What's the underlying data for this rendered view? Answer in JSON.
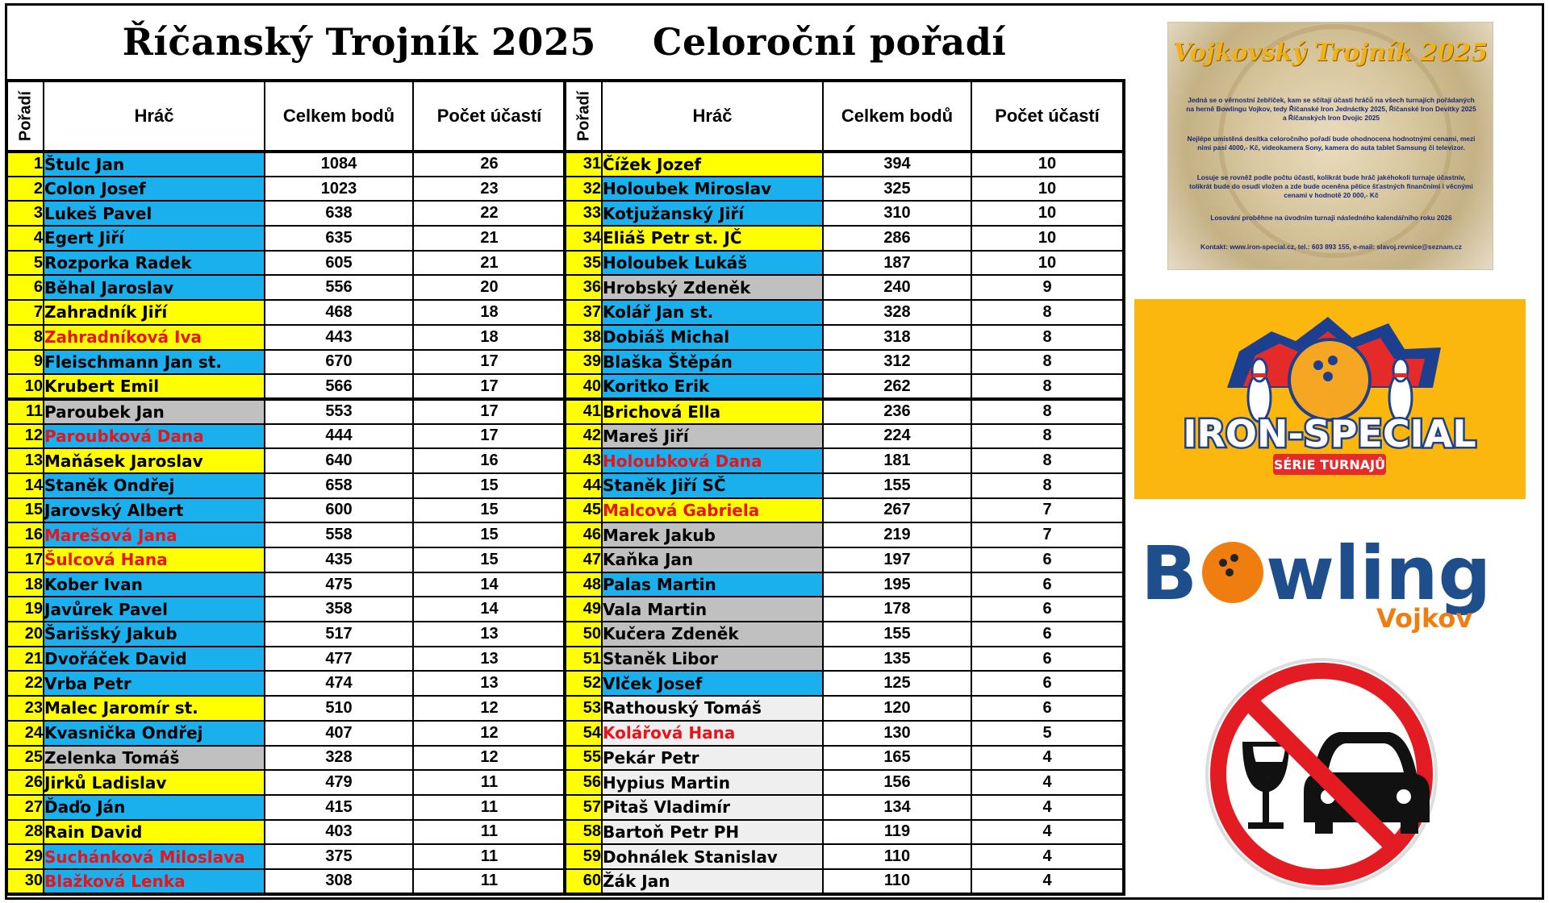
{
  "title": {
    "part1": "Říčanský Trojník 2025",
    "part2": "Celoroční pořadí"
  },
  "columns": {
    "rank": "Pořadí",
    "player": "Hráč",
    "points": "Celkem bodů",
    "count": "Počet účastí"
  },
  "colors": {
    "blue": "#1ab0ee",
    "yellow": "#ffff00",
    "gray": "#c0c0c0",
    "light": "#efefef",
    "red_text": "#e8141c",
    "orange_panel": "#fcb70f"
  },
  "left_rows": [
    {
      "rank": "1",
      "name": "Štulc Jan",
      "points": "1084",
      "count": "26",
      "bg": "blue",
      "red": false
    },
    {
      "rank": "2",
      "name": "Colon Josef",
      "points": "1023",
      "count": "23",
      "bg": "blue",
      "red": false
    },
    {
      "rank": "3",
      "name": "Lukeš Pavel",
      "points": "638",
      "count": "22",
      "bg": "blue",
      "red": false
    },
    {
      "rank": "4",
      "name": "Egert Jiří",
      "points": "635",
      "count": "21",
      "bg": "blue",
      "red": false
    },
    {
      "rank": "5",
      "name": "Rozporka Radek",
      "points": "605",
      "count": "21",
      "bg": "blue",
      "red": false
    },
    {
      "rank": "6",
      "name": "Běhal Jaroslav",
      "points": "556",
      "count": "20",
      "bg": "blue",
      "red": false
    },
    {
      "rank": "7",
      "name": "Zahradník Jiří",
      "points": "468",
      "count": "18",
      "bg": "yellow",
      "red": false
    },
    {
      "rank": "8",
      "name": "Zahradníková Iva",
      "points": "443",
      "count": "18",
      "bg": "yellow",
      "red": true
    },
    {
      "rank": "9",
      "name": "Fleischmann Jan st.",
      "points": "670",
      "count": "17",
      "bg": "blue",
      "red": false
    },
    {
      "rank": "10",
      "name": "Krubert Emil",
      "points": "566",
      "count": "17",
      "bg": "yellow",
      "red": false
    },
    {
      "rank": "11",
      "name": "Paroubek Jan",
      "points": "553",
      "count": "17",
      "bg": "gray",
      "red": false
    },
    {
      "rank": "12",
      "name": "Paroubková Dana",
      "points": "444",
      "count": "17",
      "bg": "blue",
      "red": true
    },
    {
      "rank": "13",
      "name": "Maňásek Jaroslav",
      "points": "640",
      "count": "16",
      "bg": "yellow",
      "red": false
    },
    {
      "rank": "14",
      "name": "Staněk Ondřej",
      "points": "658",
      "count": "15",
      "bg": "blue",
      "red": false
    },
    {
      "rank": "15",
      "name": "Jarovský Albert",
      "points": "600",
      "count": "15",
      "bg": "blue",
      "red": false
    },
    {
      "rank": "16",
      "name": "Marešová Jana",
      "points": "558",
      "count": "15",
      "bg": "blue",
      "red": true
    },
    {
      "rank": "17",
      "name": "Šulcová Hana",
      "points": "435",
      "count": "15",
      "bg": "yellow",
      "red": true
    },
    {
      "rank": "18",
      "name": "Kober Ivan",
      "points": "475",
      "count": "14",
      "bg": "blue",
      "red": false
    },
    {
      "rank": "19",
      "name": "Javůrek Pavel",
      "points": "358",
      "count": "14",
      "bg": "blue",
      "red": false
    },
    {
      "rank": "20",
      "name": "Šarišský Jakub",
      "points": "517",
      "count": "13",
      "bg": "blue",
      "red": false
    },
    {
      "rank": "21",
      "name": "Dvořáček David",
      "points": "477",
      "count": "13",
      "bg": "blue",
      "red": false
    },
    {
      "rank": "22",
      "name": "Vrba Petr",
      "points": "474",
      "count": "13",
      "bg": "blue",
      "red": false
    },
    {
      "rank": "23",
      "name": "Malec Jaromír st.",
      "points": "510",
      "count": "12",
      "bg": "yellow",
      "red": false
    },
    {
      "rank": "24",
      "name": "Kvasnička Ondřej",
      "points": "407",
      "count": "12",
      "bg": "blue",
      "red": false
    },
    {
      "rank": "25",
      "name": "Zelenka Tomáš",
      "points": "328",
      "count": "12",
      "bg": "gray",
      "red": false
    },
    {
      "rank": "26",
      "name": "Jirků Ladislav",
      "points": "479",
      "count": "11",
      "bg": "yellow",
      "red": false
    },
    {
      "rank": "27",
      "name": "Ďaďo Ján",
      "points": "415",
      "count": "11",
      "bg": "blue",
      "red": false
    },
    {
      "rank": "28",
      "name": "Rain David",
      "points": "403",
      "count": "11",
      "bg": "yellow",
      "red": false
    },
    {
      "rank": "29",
      "name": "Suchánková Miloslava",
      "points": "375",
      "count": "11",
      "bg": "blue",
      "red": true
    },
    {
      "rank": "30",
      "name": "Blažková Lenka",
      "points": "308",
      "count": "11",
      "bg": "blue",
      "red": true
    }
  ],
  "right_rows": [
    {
      "rank": "31",
      "name": "Čížek Jozef",
      "points": "394",
      "count": "10",
      "bg": "yellow",
      "red": false
    },
    {
      "rank": "32",
      "name": "Holoubek Miroslav",
      "points": "325",
      "count": "10",
      "bg": "blue",
      "red": false
    },
    {
      "rank": "33",
      "name": "Kotjužanský Jiří",
      "points": "310",
      "count": "10",
      "bg": "blue",
      "red": false
    },
    {
      "rank": "34",
      "name": "Eliáš Petr st. JČ",
      "points": "286",
      "count": "10",
      "bg": "yellow",
      "red": false
    },
    {
      "rank": "35",
      "name": "Holoubek Lukáš",
      "points": "187",
      "count": "10",
      "bg": "blue",
      "red": false
    },
    {
      "rank": "36",
      "name": "Hrobský Zdeněk",
      "points": "240",
      "count": "9",
      "bg": "gray",
      "red": false
    },
    {
      "rank": "37",
      "name": "Kolář Jan st.",
      "points": "328",
      "count": "8",
      "bg": "blue",
      "red": false
    },
    {
      "rank": "38",
      "name": "Dobiáš Michal",
      "points": "318",
      "count": "8",
      "bg": "blue",
      "red": false
    },
    {
      "rank": "39",
      "name": "Blaška Štěpán",
      "points": "312",
      "count": "8",
      "bg": "blue",
      "red": false
    },
    {
      "rank": "40",
      "name": "Koritko Erik",
      "points": "262",
      "count": "8",
      "bg": "blue",
      "red": false
    },
    {
      "rank": "41",
      "name": "Brichová Ella",
      "points": "236",
      "count": "8",
      "bg": "yellow",
      "red": false
    },
    {
      "rank": "42",
      "name": "Mareš Jiří",
      "points": "224",
      "count": "8",
      "bg": "gray",
      "red": false
    },
    {
      "rank": "43",
      "name": "Holoubková Dana",
      "points": "181",
      "count": "8",
      "bg": "blue",
      "red": true
    },
    {
      "rank": "44",
      "name": "Staněk Jiří SČ",
      "points": "155",
      "count": "8",
      "bg": "blue",
      "red": false
    },
    {
      "rank": "45",
      "name": "Malcová Gabriela",
      "points": "267",
      "count": "7",
      "bg": "yellow",
      "red": true
    },
    {
      "rank": "46",
      "name": "Marek Jakub",
      "points": "219",
      "count": "7",
      "bg": "gray",
      "red": false
    },
    {
      "rank": "47",
      "name": "Kaňka Jan",
      "points": "197",
      "count": "6",
      "bg": "gray",
      "red": false
    },
    {
      "rank": "48",
      "name": "Palas Martin",
      "points": "195",
      "count": "6",
      "bg": "blue",
      "red": false
    },
    {
      "rank": "49",
      "name": "Vala Martin",
      "points": "178",
      "count": "6",
      "bg": "gray",
      "red": false
    },
    {
      "rank": "50",
      "name": "Kučera Zdeněk",
      "points": "155",
      "count": "6",
      "bg": "gray",
      "red": false
    },
    {
      "rank": "51",
      "name": "Staněk Libor",
      "points": "135",
      "count": "6",
      "bg": "gray",
      "red": false
    },
    {
      "rank": "52",
      "name": "Vlček Josef",
      "points": "125",
      "count": "6",
      "bg": "blue",
      "red": false
    },
    {
      "rank": "53",
      "name": "Rathouský Tomáš",
      "points": "120",
      "count": "6",
      "bg": "light",
      "red": false
    },
    {
      "rank": "54",
      "name": "Kolářová Hana",
      "points": "130",
      "count": "5",
      "bg": "light",
      "red": true
    },
    {
      "rank": "55",
      "name": "Pekár Petr",
      "points": "165",
      "count": "4",
      "bg": "light",
      "red": false
    },
    {
      "rank": "56",
      "name": "Hypius Martin",
      "points": "156",
      "count": "4",
      "bg": "light",
      "red": false
    },
    {
      "rank": "57",
      "name": "Pitaš Vladimír",
      "points": "134",
      "count": "4",
      "bg": "light",
      "red": false
    },
    {
      "rank": "58",
      "name": "Bartoň Petr PH",
      "points": "119",
      "count": "4",
      "bg": "light",
      "red": false
    },
    {
      "rank": "59",
      "name": "Dohnálek Stanislav",
      "points": "110",
      "count": "4",
      "bg": "light",
      "red": false
    },
    {
      "rank": "60",
      "name": "Žák Jan",
      "points": "110",
      "count": "4",
      "bg": "light",
      "red": false
    }
  ],
  "flyer": {
    "title": "Vojkovský Trojník 2025",
    "p1": "Jedná se o věrnostní žebříček, kam se sčítají účasti hráčů na všech turnajích pořádaných na herně Bowlingu Vojkov, tedy Říčanské Iron Jednáctky 2025, Říčanské Iron Devítky 2025 a Říčanských Iron Dvojic 2025",
    "p2": "Nejlépe umístěná desítka celoročního pořadí bude ohodnocena hodnotnými cenami, mezi nimi pasí 4000,- Kč, videokamera Sony, kamera do auta tablet Samsung či televizor.",
    "p3": "Losuje se rovněž podle počtu účastí, kolikrát bude hráč jakéhokoli turnaje účastnív, tolikrát bude do osudí vložen a zde bude oceněna pětice šťastných finančními i věcnými cenami v hodnotě 20 000,- Kč",
    "p4": "Losování proběhne na úvodním turnaji následného kalendářního roku 2026",
    "p5": "Kontakt: www.iron-special.cz, tel.: 603 893 155, e-mail: slavoj.revnice@seznam.cz"
  },
  "logos": {
    "iron_special_line1": "IRON-SPECIAL",
    "iron_special_line2": "SÉRIE TURNAJŮ",
    "bowling_word_b": "B",
    "bowling_word_rest": "wling",
    "bowling_place": "Vojkov"
  },
  "icons": [
    "bowling-ball-icon",
    "bowling-pin-icon",
    "no-drink-driving-icon"
  ]
}
